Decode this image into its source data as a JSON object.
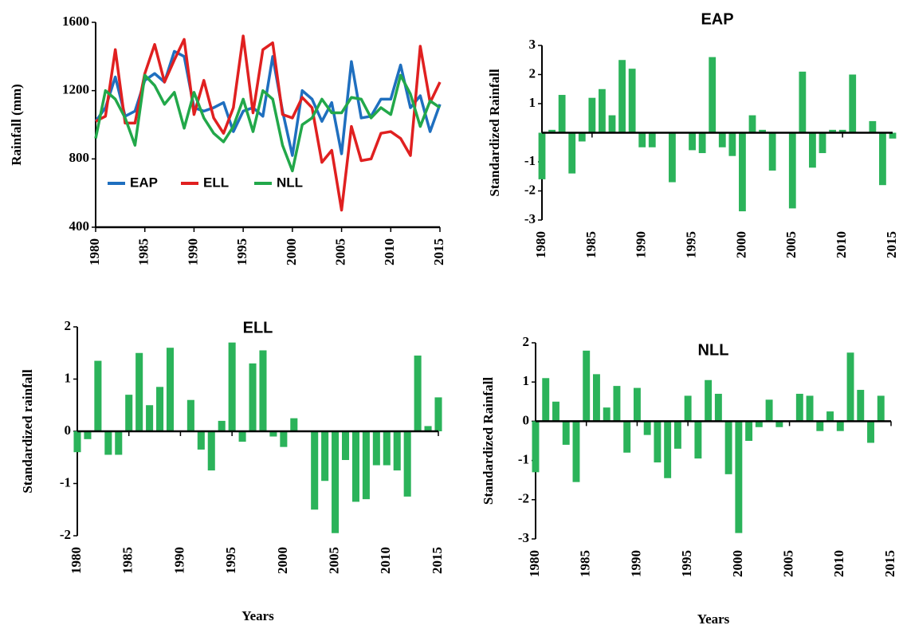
{
  "chart_data": [
    {
      "type": "line",
      "y_label": "Rainfall (mm)",
      "x": [
        1980,
        1981,
        1982,
        1983,
        1984,
        1985,
        1986,
        1987,
        1988,
        1989,
        1990,
        1991,
        1992,
        1993,
        1994,
        1995,
        1996,
        1997,
        1998,
        1999,
        2000,
        2001,
        2002,
        2003,
        2004,
        2005,
        2006,
        2007,
        2008,
        2009,
        2010,
        2011,
        2012,
        2013,
        2014,
        2015
      ],
      "xlim": [
        1980,
        2015
      ],
      "xticks": [
        1980,
        1985,
        1990,
        1995,
        2000,
        2005,
        2010,
        2015
      ],
      "ylim": [
        400,
        1600
      ],
      "yticks": [
        400,
        800,
        1200,
        1600
      ],
      "legend": "lower left",
      "series": [
        {
          "name": "EAP",
          "color": "#1f6fbf",
          "values": [
            1020,
            1100,
            1280,
            1050,
            1080,
            1260,
            1300,
            1250,
            1430,
            1400,
            1100,
            1080,
            1100,
            1130,
            960,
            1080,
            1100,
            1050,
            1400,
            1080,
            820,
            1200,
            1150,
            1020,
            1130,
            830,
            1370,
            1040,
            1050,
            1150,
            1150,
            1350,
            1100,
            1170,
            960,
            1120
          ]
        },
        {
          "name": "ELL",
          "color": "#e02020",
          "values": [
            1020,
            1050,
            1440,
            1010,
            1010,
            1300,
            1470,
            1250,
            1380,
            1500,
            1060,
            1260,
            1040,
            950,
            1100,
            1520,
            1070,
            1440,
            1480,
            1060,
            1040,
            1160,
            1100,
            780,
            850,
            500,
            990,
            790,
            800,
            950,
            960,
            920,
            820,
            1460,
            1130,
            1250
          ]
        },
        {
          "name": "NLL",
          "color": "#22a84a",
          "values": [
            920,
            1200,
            1150,
            1040,
            880,
            1290,
            1230,
            1120,
            1190,
            980,
            1190,
            1040,
            950,
            900,
            990,
            1150,
            960,
            1200,
            1150,
            880,
            730,
            1000,
            1040,
            1150,
            1070,
            1070,
            1160,
            1150,
            1040,
            1100,
            1060,
            1290,
            1180,
            990,
            1140,
            1100
          ]
        }
      ]
    },
    {
      "type": "bar",
      "title": "EAP",
      "y_label": "Standardized Rainfall",
      "color": "#2bb35a",
      "x": [
        1980,
        1981,
        1982,
        1983,
        1984,
        1985,
        1986,
        1987,
        1988,
        1989,
        1990,
        1991,
        1992,
        1993,
        1994,
        1995,
        1996,
        1997,
        1998,
        1999,
        2000,
        2001,
        2002,
        2003,
        2004,
        2005,
        2006,
        2007,
        2008,
        2009,
        2010,
        2011,
        2012,
        2013,
        2014,
        2015
      ],
      "values": [
        -1.6,
        0.1,
        1.3,
        -1.4,
        -0.3,
        1.2,
        1.5,
        0.6,
        2.5,
        2.2,
        -0.5,
        -0.5,
        0,
        -1.7,
        0,
        -0.6,
        -0.7,
        2.6,
        -0.5,
        -0.8,
        -2.7,
        0.6,
        0.1,
        -1.3,
        0,
        -2.6,
        2.1,
        -1.2,
        -0.7,
        0.1,
        0.1,
        2.0,
        0,
        0.4,
        -1.8,
        -0.2
      ],
      "xlim": [
        1980,
        2015
      ],
      "xticks": [
        1980,
        1985,
        1990,
        1995,
        2000,
        2005,
        2010,
        2015
      ],
      "ylim": [
        -3,
        3
      ],
      "yticks": [
        -3,
        -2,
        -1,
        1,
        2,
        3
      ]
    },
    {
      "type": "bar",
      "title": "ELL",
      "y_label": "Standardized rainfall",
      "x_label": "Years",
      "color": "#2bb35a",
      "x": [
        1980,
        1981,
        1982,
        1983,
        1984,
        1985,
        1986,
        1987,
        1988,
        1989,
        1990,
        1991,
        1992,
        1993,
        1994,
        1995,
        1996,
        1997,
        1998,
        1999,
        2000,
        2001,
        2002,
        2003,
        2004,
        2005,
        2006,
        2007,
        2008,
        2009,
        2010,
        2011,
        2012,
        2013,
        2014,
        2015
      ],
      "values": [
        -0.4,
        -0.15,
        1.35,
        -0.45,
        -0.45,
        0.7,
        1.5,
        0.5,
        0.85,
        1.6,
        0,
        0.6,
        -0.35,
        -0.75,
        0.2,
        1.7,
        -0.2,
        1.3,
        1.55,
        -0.1,
        -0.3,
        0.25,
        0,
        -1.5,
        -0.95,
        -1.95,
        -0.55,
        -1.35,
        -1.3,
        -0.65,
        -0.65,
        -0.75,
        -1.25,
        1.45,
        0.1,
        0.65
      ],
      "xlim": [
        1980,
        2015
      ],
      "xticks": [
        1980,
        1985,
        1990,
        1995,
        2000,
        2005,
        2010,
        2015
      ],
      "ylim": [
        -2,
        2
      ],
      "yticks": [
        -2,
        -1,
        0,
        1,
        2
      ]
    },
    {
      "type": "bar",
      "title": "NLL",
      "y_label": "Standardized Rainfall",
      "x_label": "Years",
      "color": "#2bb35a",
      "x": [
        1980,
        1981,
        1982,
        1983,
        1984,
        1985,
        1986,
        1987,
        1988,
        1989,
        1990,
        1991,
        1992,
        1993,
        1994,
        1995,
        1996,
        1997,
        1998,
        1999,
        2000,
        2001,
        2002,
        2003,
        2004,
        2005,
        2006,
        2007,
        2008,
        2009,
        2010,
        2011,
        2012,
        2013,
        2014
      ],
      "values": [
        -1.3,
        1.1,
        0.5,
        -0.6,
        -1.55,
        1.8,
        1.2,
        0.35,
        0.9,
        -0.8,
        0.85,
        -0.35,
        -1.05,
        -1.45,
        -0.7,
        0.65,
        -0.95,
        1.05,
        0.7,
        -1.35,
        -2.85,
        -0.5,
        -0.15,
        0.55,
        -0.15,
        0,
        0.7,
        0.65,
        -0.25,
        0.25,
        -0.25,
        1.75,
        0.8,
        -0.55,
        0.65
      ],
      "xlim": [
        1980,
        2015
      ],
      "xticks": [
        1980,
        1985,
        1990,
        1995,
        2000,
        2005,
        2010,
        2015
      ],
      "ylim": [
        -3,
        2
      ],
      "yticks": [
        -3,
        -2,
        -1,
        0,
        1,
        2
      ]
    }
  ]
}
